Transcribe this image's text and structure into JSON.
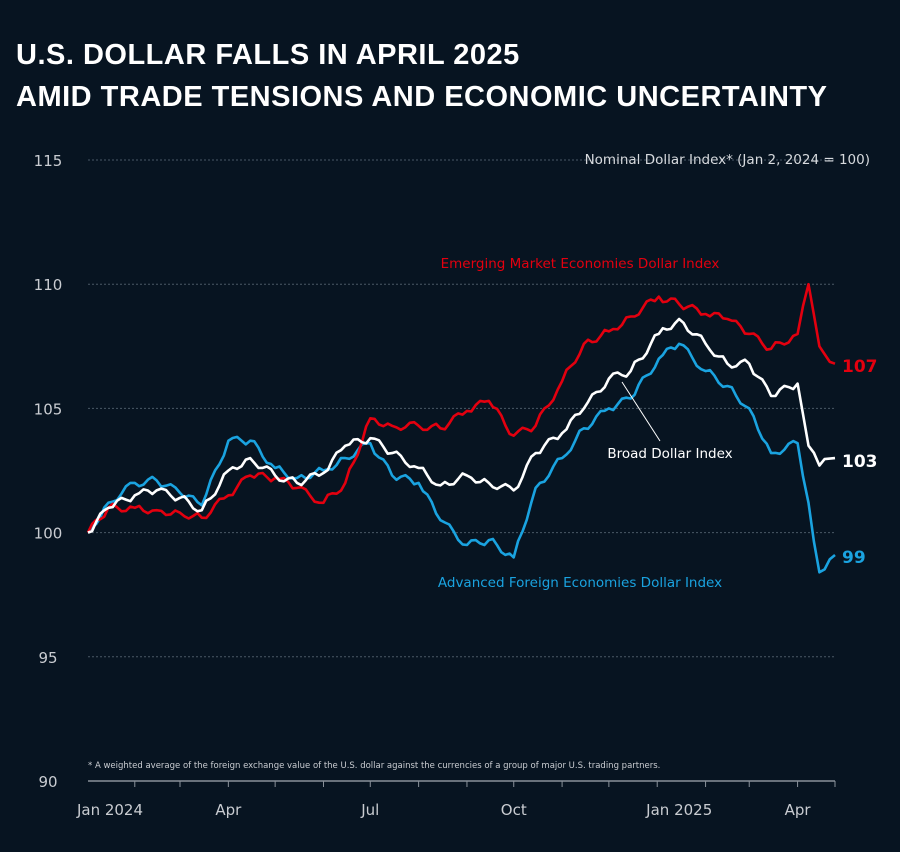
{
  "chart_data": {
    "type": "line",
    "title": "U.S. DOLLAR FALLS IN APRIL 2025",
    "subtitle": "AMID TRADE TENSIONS AND ECONOMIC UNCERTAINTY",
    "ylabel": "Nominal Dollar Index* (Jan 2, 2024 = 100)",
    "footnote": "* A weighted average of the foreign exchange value of the U.S. dollar against the currencies of a group of major U.S. trading partners.",
    "ylim": [
      90,
      115
    ],
    "yticks": [
      90,
      95,
      100,
      105,
      110,
      115
    ],
    "xlim": [
      "2024-01-02",
      "2025-04-25"
    ],
    "xticks": [
      {
        "date": "2024-01-01",
        "label": "Jan 2024"
      },
      {
        "date": "2024-04-01",
        "label": "Apr"
      },
      {
        "date": "2024-07-01",
        "label": "Jul"
      },
      {
        "date": "2024-10-01",
        "label": "Oct"
      },
      {
        "date": "2025-01-01",
        "label": "Jan 2025"
      },
      {
        "date": "2025-04-01",
        "label": "Apr"
      }
    ],
    "grid": true,
    "x": [
      "2024-01-02",
      "2024-01-15",
      "2024-02-01",
      "2024-02-15",
      "2024-03-01",
      "2024-03-15",
      "2024-04-01",
      "2024-04-15",
      "2024-05-01",
      "2024-05-15",
      "2024-06-01",
      "2024-06-15",
      "2024-07-01",
      "2024-07-15",
      "2024-08-01",
      "2024-08-15",
      "2024-09-01",
      "2024-09-15",
      "2024-10-01",
      "2024-10-15",
      "2024-11-01",
      "2024-11-15",
      "2024-12-01",
      "2024-12-15",
      "2025-01-02",
      "2025-01-15",
      "2025-02-01",
      "2025-02-15",
      "2025-03-01",
      "2025-03-15",
      "2025-04-01",
      "2025-04-08",
      "2025-04-15",
      "2025-04-25"
    ],
    "series": [
      {
        "name": "Emerging Market Economies Dollar Index",
        "color": "#e3000f",
        "end_label": "107",
        "values": [
          100,
          101,
          101,
          100.9,
          100.8,
          100.6,
          101.5,
          102.3,
          102.2,
          101.8,
          101.2,
          102,
          104.6,
          104.3,
          104.3,
          104.2,
          104.9,
          105.3,
          103.9,
          104.3,
          106.1,
          107.6,
          108.1,
          108.7,
          109.5,
          109.2,
          108.8,
          108.6,
          108,
          107.4,
          108,
          110,
          107.5,
          106.8
        ]
      },
      {
        "name": "Broad Dollar Index",
        "color": "#ffffff",
        "end_label": "103",
        "values": [
          100,
          101,
          101.5,
          101.7,
          101.4,
          100.9,
          102.5,
          103,
          102.3,
          102,
          102.4,
          103.5,
          103.8,
          103.2,
          102.6,
          101.9,
          102.3,
          102,
          101.7,
          103.2,
          104,
          105,
          106.2,
          106.5,
          108,
          108.6,
          107.6,
          106.8,
          106.8,
          105.5,
          106,
          103.5,
          102.7,
          103
        ]
      },
      {
        "name": "Advanced Foreign Economies Dollar Index",
        "color": "#1aa3e0",
        "end_label": "99",
        "values": [
          100,
          101.2,
          102,
          102.1,
          101.6,
          101.1,
          103.7,
          103.7,
          102.6,
          102.2,
          102.5,
          103,
          103.6,
          102.3,
          102,
          100.5,
          99.5,
          99.7,
          99,
          101.8,
          103,
          104.2,
          105,
          105.4,
          107,
          107.6,
          106.5,
          105.9,
          105,
          103.2,
          103.6,
          101.2,
          98.4,
          99.1
        ]
      }
    ]
  }
}
